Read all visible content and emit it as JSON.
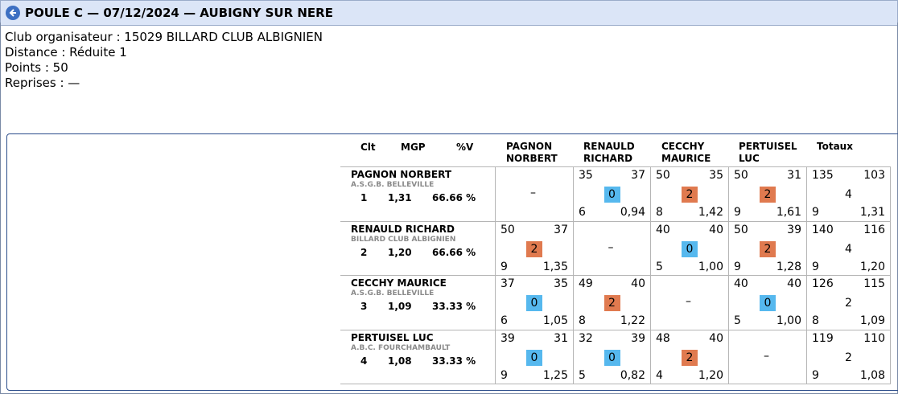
{
  "header": {
    "title": "POULE C — 07/12/2024 — AUBIGNY SUR NERE"
  },
  "info": {
    "club": "Club organisateur : 15029 BILLARD CLUB ALBIGNIEN",
    "distance": "Distance : Réduite 1",
    "points": "Points : 50",
    "reprises": "Reprises : —"
  },
  "table": {
    "col_clt": "Clt",
    "col_mgp": "MGP",
    "col_pv": "%V",
    "col_totaux": "Totaux",
    "opponents": [
      {
        "line1": "PAGNON",
        "line2": "NORBERT"
      },
      {
        "line1": "RENAULD",
        "line2": "RICHARD"
      },
      {
        "line1": "CECCHY",
        "line2": "MAURICE"
      },
      {
        "line1": "PERTUISEL",
        "line2": "LUC"
      }
    ],
    "dash": "–",
    "rows": [
      {
        "name": "PAGNON NORBERT",
        "club": "A.S.G.B. BELLEVILLE",
        "clt": "1",
        "mgp": "1,31",
        "pv": "66.66 %",
        "cells": [
          null,
          {
            "pts": "35",
            "opp": "37",
            "score": "0",
            "reprises": "6",
            "moy": "0,94",
            "result": "loss"
          },
          {
            "pts": "50",
            "opp": "35",
            "score": "2",
            "reprises": "8",
            "moy": "1,42",
            "result": "win"
          },
          {
            "pts": "50",
            "opp": "31",
            "score": "2",
            "reprises": "9",
            "moy": "1,61",
            "result": "win"
          }
        ],
        "totals": {
          "pts": "135",
          "opp": "103",
          "score": "4",
          "reprises": "9",
          "moy": "1,31"
        }
      },
      {
        "name": "RENAULD RICHARD",
        "club": "BILLARD CLUB ALBIGNIEN",
        "clt": "2",
        "mgp": "1,20",
        "pv": "66.66 %",
        "cells": [
          {
            "pts": "50",
            "opp": "37",
            "score": "2",
            "reprises": "9",
            "moy": "1,35",
            "result": "win"
          },
          null,
          {
            "pts": "40",
            "opp": "40",
            "score": "0",
            "reprises": "5",
            "moy": "1,00",
            "result": "loss"
          },
          {
            "pts": "50",
            "opp": "39",
            "score": "2",
            "reprises": "9",
            "moy": "1,28",
            "result": "win"
          }
        ],
        "totals": {
          "pts": "140",
          "opp": "116",
          "score": "4",
          "reprises": "9",
          "moy": "1,20"
        }
      },
      {
        "name": "CECCHY MAURICE",
        "club": "A.S.G.B. BELLEVILLE",
        "clt": "3",
        "mgp": "1,09",
        "pv": "33.33 %",
        "cells": [
          {
            "pts": "37",
            "opp": "35",
            "score": "0",
            "reprises": "6",
            "moy": "1,05",
            "result": "loss"
          },
          {
            "pts": "49",
            "opp": "40",
            "score": "2",
            "reprises": "8",
            "moy": "1,22",
            "result": "win"
          },
          null,
          {
            "pts": "40",
            "opp": "40",
            "score": "0",
            "reprises": "5",
            "moy": "1,00",
            "result": "loss"
          }
        ],
        "totals": {
          "pts": "126",
          "opp": "115",
          "score": "2",
          "reprises": "8",
          "moy": "1,09"
        }
      },
      {
        "name": "PERTUISEL LUC",
        "club": "A.B.C. FOURCHAMBAULT",
        "clt": "4",
        "mgp": "1,08",
        "pv": "33.33 %",
        "cells": [
          {
            "pts": "39",
            "opp": "31",
            "score": "0",
            "reprises": "9",
            "moy": "1,25",
            "result": "loss"
          },
          {
            "pts": "32",
            "opp": "39",
            "score": "0",
            "reprises": "5",
            "moy": "0,82",
            "result": "loss"
          },
          {
            "pts": "48",
            "opp": "40",
            "score": "2",
            "reprises": "4",
            "moy": "1,20",
            "result": "win"
          },
          null
        ],
        "totals": {
          "pts": "119",
          "opp": "110",
          "score": "2",
          "reprises": "9",
          "moy": "1,08"
        }
      }
    ]
  }
}
